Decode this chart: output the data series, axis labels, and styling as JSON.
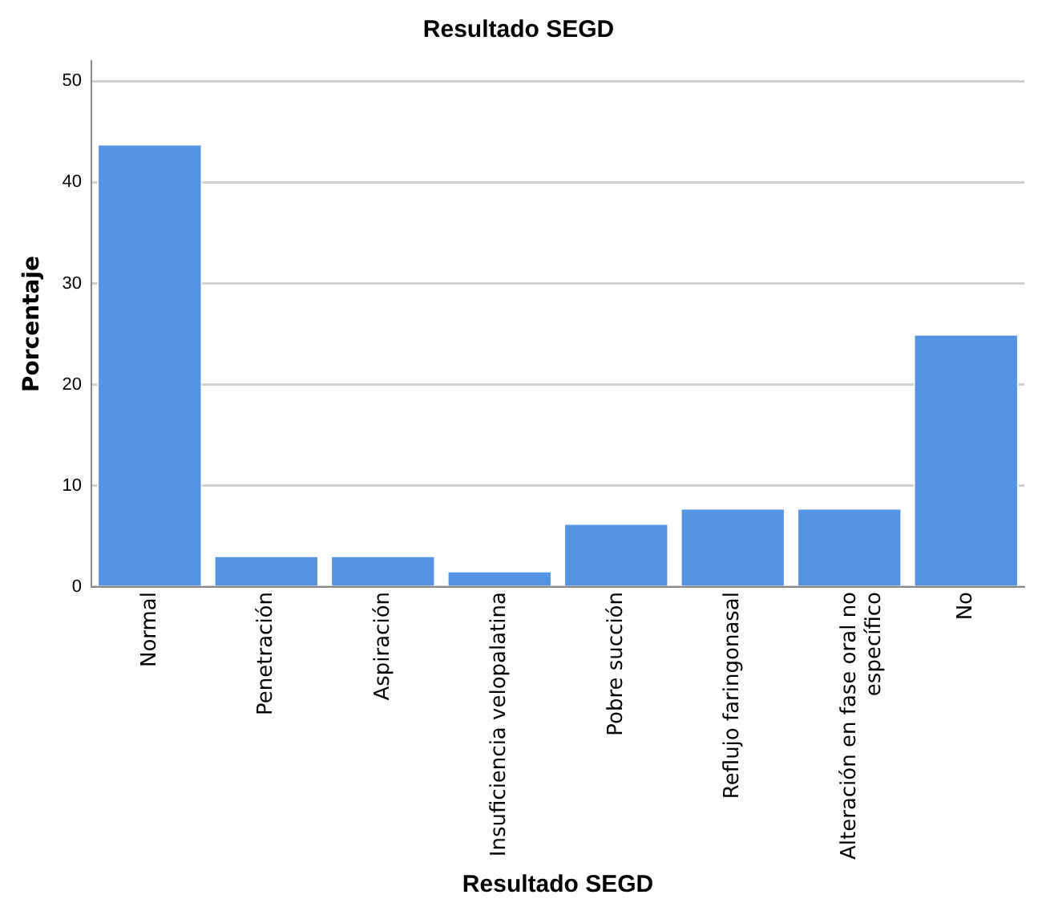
{
  "chart_data": {
    "type": "bar",
    "title": "Resultado SEGD",
    "xlabel": "Resultado SEGD",
    "ylabel": "Porcentaje",
    "categories": [
      "Normal",
      "Penetración",
      "Aspiración",
      "Insuficiencia velopalatina",
      "Pobre succión",
      "Reflujo faringonasal",
      "Alteración en fase oral no específico",
      "No"
    ],
    "values": [
      43.8,
      3.1,
      3.1,
      1.6,
      6.3,
      7.8,
      7.8,
      25.0
    ],
    "color": "#5294e2",
    "ylim": [
      0,
      52
    ],
    "yticks": [
      0,
      10,
      20,
      30,
      40,
      50
    ],
    "grid": "y",
    "legend": false
  }
}
